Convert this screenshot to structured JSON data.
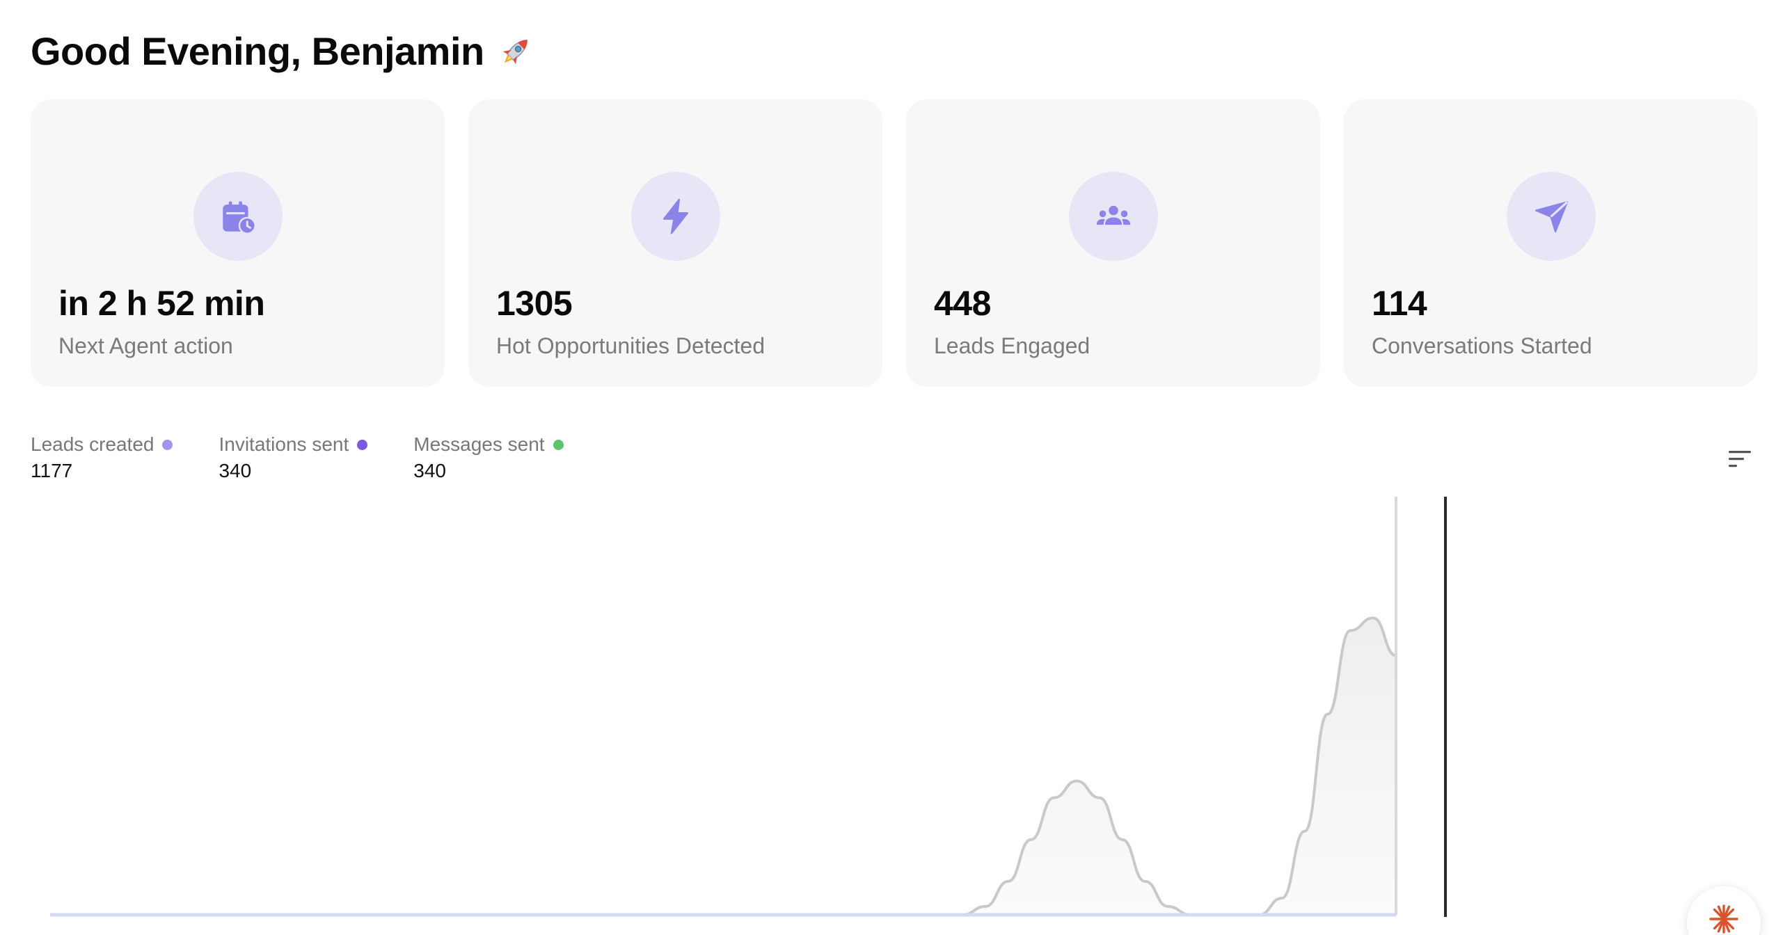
{
  "header": {
    "greeting": "Good Evening, Benjamin",
    "emoji": "rocket"
  },
  "stats": [
    {
      "icon": "calendar-clock-icon",
      "value": "in 2 h 52 min",
      "label": "Next Agent action"
    },
    {
      "icon": "lightning-bolt-icon",
      "value": "1305",
      "label": "Hot Opportunities Detected"
    },
    {
      "icon": "users-group-icon",
      "value": "448",
      "label": "Leads Engaged"
    },
    {
      "icon": "send-plane-icon",
      "value": "114",
      "label": "Conversations Started"
    }
  ],
  "legend": [
    {
      "label": "Leads created",
      "count": "1177",
      "color": "#9b97ec"
    },
    {
      "label": "Invitations sent",
      "count": "340",
      "color": "#7a5ae0"
    },
    {
      "label": "Messages sent",
      "count": "340",
      "color": "#5cc26e"
    }
  ],
  "colors": {
    "accent": "#8b84e8",
    "icon_bg": "#e8e6f6",
    "card_bg": "#f7f7f7",
    "fab_accent": "#d9542c"
  },
  "chart_data": {
    "type": "area",
    "series": [
      {
        "name": "Leads created",
        "values": [
          0,
          0,
          0,
          0,
          0,
          0,
          0,
          0,
          0,
          0,
          0,
          0,
          0,
          0,
          0,
          0,
          0,
          0,
          0,
          0,
          0,
          0,
          0,
          0,
          0,
          0,
          0,
          0,
          0,
          0,
          0,
          0,
          0,
          0,
          0,
          0,
          0,
          0,
          0,
          0,
          0,
          2,
          8,
          18,
          28,
          32,
          28,
          18,
          8,
          2,
          0,
          0,
          0,
          0,
          4,
          20,
          48,
          68,
          71,
          62
        ]
      }
    ],
    "ylim": [
      0,
      100
    ],
    "grid": false
  }
}
